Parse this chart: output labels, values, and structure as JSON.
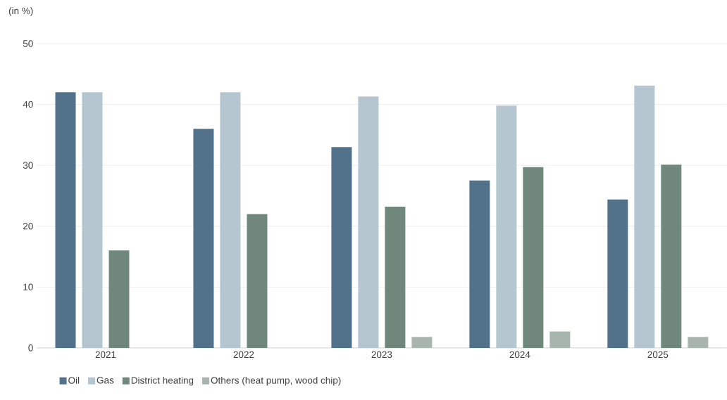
{
  "chart_data": {
    "type": "bar",
    "ylabel": "(in %)",
    "categories": [
      "2021",
      "2022",
      "2023",
      "2024",
      "2025"
    ],
    "series": [
      {
        "name": "Oil",
        "color": "#52718a",
        "values": [
          42,
          36,
          33,
          27.5,
          24.4
        ]
      },
      {
        "name": "Gas",
        "color": "#b5c6d1",
        "values": [
          42,
          42,
          41.3,
          39.8,
          43.1
        ]
      },
      {
        "name": "District heating",
        "color": "#70877b",
        "values": [
          16,
          22,
          23.2,
          29.7,
          30.1
        ]
      },
      {
        "name": "Others (heat pump, wood chip)",
        "color": "#a8b5ae",
        "values": [
          null,
          null,
          1.8,
          2.7,
          1.8
        ]
      }
    ],
    "ylim": [
      0,
      50
    ],
    "yticks": [
      0,
      10,
      20,
      30,
      40,
      50
    ],
    "grid": "y",
    "legend": "bottom"
  }
}
